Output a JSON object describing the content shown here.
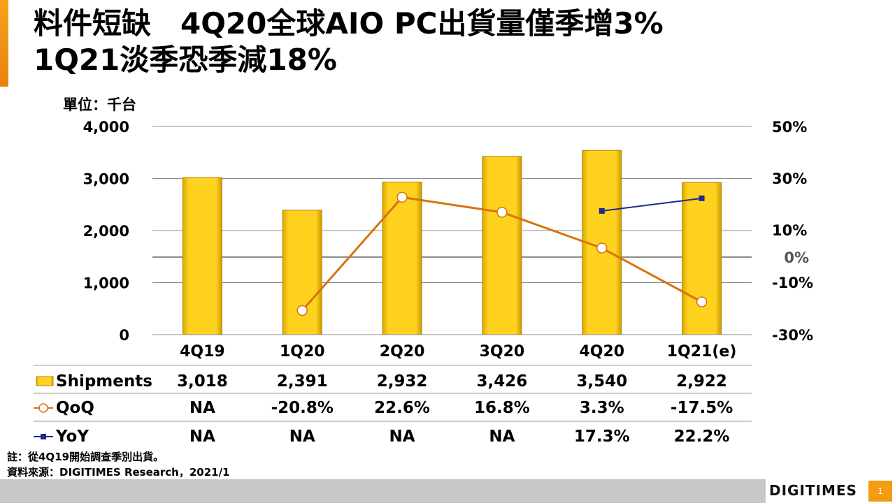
{
  "title": {
    "line1": "料件短缺　4Q20全球AIO PC出貨量僅季增3%",
    "line2": "1Q21淡季恐季減18%"
  },
  "unit_label": "單位：千台",
  "footnotes": {
    "note": "註：從4Q19開始調查季別出貨。",
    "source": "資料來源：DIGITIMES Research，2021/1"
  },
  "brand": "DIGITIMES",
  "page_number": "1",
  "colors": {
    "accent": "#f39c12",
    "bar": "#f5c400",
    "bar_edge": "#b8860b",
    "qoq_line": "#d9730d",
    "yoy_line": "#1f2a8c"
  },
  "chart_data": {
    "type": "bar",
    "categories": [
      "4Q19",
      "1Q20",
      "2Q20",
      "3Q20",
      "4Q20",
      "1Q21(e)"
    ],
    "left_axis": {
      "ticks": [
        "4,000",
        "3,000",
        "2,000",
        "1,000",
        "0"
      ],
      "tick_values": [
        4000,
        3000,
        2000,
        1000,
        0
      ],
      "ylim": [
        0,
        4000
      ]
    },
    "right_axis": {
      "ticks": [
        "50%",
        "30%",
        "10%",
        "0%",
        "-10%",
        "-30%"
      ],
      "tick_values": [
        50,
        30,
        10,
        0,
        -10,
        -30
      ]
    },
    "series": [
      {
        "name": "Shipments",
        "kind": "bar",
        "values": [
          3018,
          2391,
          2932,
          3426,
          3540,
          2922
        ],
        "labels": [
          "3,018",
          "2,391",
          "2,932",
          "3,426",
          "3,540",
          "2,922"
        ]
      },
      {
        "name": "QoQ",
        "kind": "line",
        "values": [
          null,
          -20.8,
          22.6,
          16.8,
          3.3,
          -17.5
        ],
        "labels": [
          "NA",
          "-20.8%",
          "22.6%",
          "16.8%",
          "3.3%",
          "-17.5%"
        ]
      },
      {
        "name": "YoY",
        "kind": "line",
        "values": [
          null,
          null,
          null,
          null,
          17.3,
          22.2
        ],
        "labels": [
          "NA",
          "NA",
          "NA",
          "NA",
          "17.3%",
          "22.2%"
        ]
      }
    ]
  }
}
